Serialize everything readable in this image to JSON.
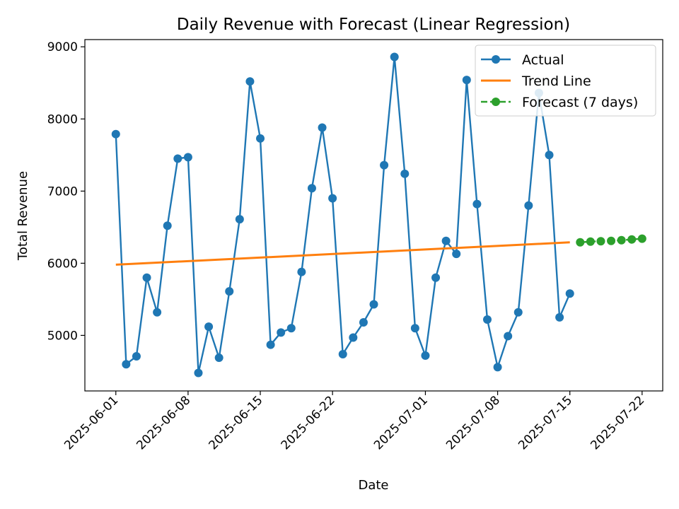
{
  "chart_data": {
    "type": "line",
    "title": "Daily Revenue with Forecast (Linear Regression)",
    "xlabel": "Date",
    "ylabel": "Total Revenue",
    "xlim": [
      "2025-05-29",
      "2025-07-24"
    ],
    "ylim": [
      4230,
      9100
    ],
    "x_ticks": [
      "2025-06-01",
      "2025-06-08",
      "2025-06-15",
      "2025-06-22",
      "2025-07-01",
      "2025-07-08",
      "2025-07-15",
      "2025-07-22"
    ],
    "y_ticks": [
      5000,
      6000,
      7000,
      8000,
      9000
    ],
    "grid": false,
    "legend_position": "top-right",
    "series": [
      {
        "name": "Actual",
        "style": "line-marker",
        "color": "#1f77b4",
        "x": [
          "2025-06-01",
          "2025-06-02",
          "2025-06-03",
          "2025-06-04",
          "2025-06-05",
          "2025-06-06",
          "2025-06-07",
          "2025-06-08",
          "2025-06-09",
          "2025-06-10",
          "2025-06-11",
          "2025-06-12",
          "2025-06-13",
          "2025-06-14",
          "2025-06-15",
          "2025-06-16",
          "2025-06-17",
          "2025-06-18",
          "2025-06-19",
          "2025-06-20",
          "2025-06-21",
          "2025-06-22",
          "2025-06-23",
          "2025-06-24",
          "2025-06-25",
          "2025-06-26",
          "2025-06-27",
          "2025-06-28",
          "2025-06-29",
          "2025-06-30",
          "2025-07-01",
          "2025-07-02",
          "2025-07-03",
          "2025-07-04",
          "2025-07-05",
          "2025-07-06",
          "2025-07-07",
          "2025-07-08",
          "2025-07-09",
          "2025-07-10",
          "2025-07-11",
          "2025-07-12",
          "2025-07-13",
          "2025-07-14",
          "2025-07-15"
        ],
        "values": [
          7790,
          4600,
          4710,
          5800,
          5320,
          6520,
          7450,
          7470,
          4480,
          5120,
          4690,
          5610,
          6610,
          8520,
          7730,
          4870,
          5040,
          5100,
          5880,
          7040,
          7880,
          6900,
          4740,
          4970,
          5180,
          5430,
          7360,
          8860,
          7240,
          5100,
          4720,
          5800,
          6310,
          6130,
          8540,
          6820,
          5220,
          4560,
          4990,
          5320,
          6800,
          8360,
          7500,
          5250,
          5580
        ]
      },
      {
        "name": "Trend Line",
        "style": "line",
        "color": "#ff7f0e",
        "x": [
          "2025-06-01",
          "2025-07-15"
        ],
        "values": [
          5980,
          6290
        ]
      },
      {
        "name": "Forecast (7 days)",
        "style": "dashed-marker",
        "color": "#2ca02c",
        "x": [
          "2025-07-16",
          "2025-07-17",
          "2025-07-18",
          "2025-07-19",
          "2025-07-20",
          "2025-07-21",
          "2025-07-22"
        ],
        "values": [
          6290,
          6300,
          6305,
          6310,
          6320,
          6330,
          6340
        ]
      }
    ]
  }
}
